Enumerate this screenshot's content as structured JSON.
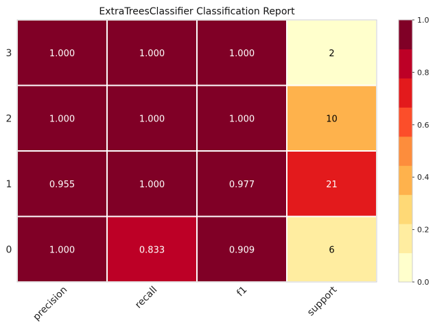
{
  "chart_data": {
    "type": "heatmap",
    "title": "ExtraTreesClassifier Classification Report",
    "columns": [
      "precision",
      "recall",
      "f1",
      "support"
    ],
    "rows": [
      "3",
      "2",
      "1",
      "0"
    ],
    "values": [
      [
        1.0,
        1.0,
        1.0,
        2
      ],
      [
        1.0,
        1.0,
        1.0,
        10
      ],
      [
        0.955,
        1.0,
        0.977,
        21
      ],
      [
        1.0,
        0.833,
        0.909,
        6
      ]
    ],
    "labels": [
      [
        "1.000",
        "1.000",
        "1.000",
        "2"
      ],
      [
        "1.000",
        "1.000",
        "1.000",
        "10"
      ],
      [
        "0.955",
        "1.000",
        "0.977",
        "21"
      ],
      [
        "1.000",
        "0.833",
        "0.909",
        "6"
      ]
    ],
    "support_color_fraction": [
      0.07,
      0.36,
      0.69,
      0.15
    ],
    "colorbar": {
      "range": [
        0.0,
        1.0
      ],
      "tick_labels": [
        "0.0",
        "0.2",
        "0.4",
        "0.6",
        "0.8",
        "1.0"
      ],
      "colors": [
        "#ffffcc",
        "#ffeda0",
        "#fed976",
        "#feb24c",
        "#fd8d3c",
        "#fc4e2a",
        "#e31a1c",
        "#bd0026",
        "#800026"
      ]
    }
  }
}
